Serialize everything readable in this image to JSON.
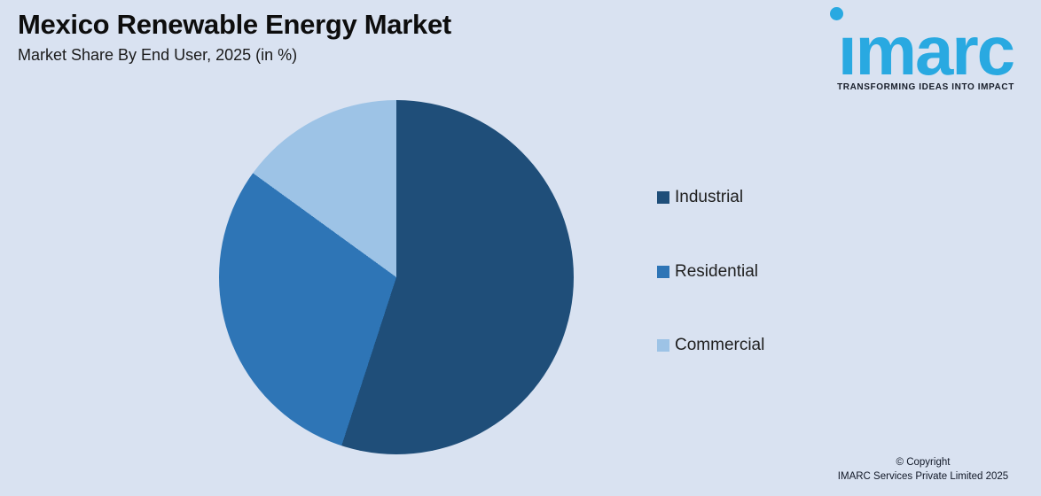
{
  "header": {
    "title": "Mexico Renewable Energy Market",
    "subtitle": "Market Share By End User, 2025 (in %)"
  },
  "logo": {
    "wordmark": "imarc",
    "tagline": "TRANSFORMING IDEAS INTO IMPACT",
    "brand_color": "#29A9E1"
  },
  "chart_data": {
    "type": "pie",
    "title": "Mexico Renewable Energy Market",
    "subtitle": "Market Share By End User, 2025 (in %)",
    "labels": [
      "Industrial",
      "Residential",
      "Commercial"
    ],
    "values": [
      55,
      30,
      15
    ],
    "unit": "%",
    "colors": [
      "#1F4E79",
      "#2E75B6",
      "#9DC3E6"
    ],
    "start_angle_deg": 0,
    "direction": "clockwise",
    "legend_position": "right",
    "data_labels_shown": false
  },
  "footer": {
    "line1": "© Copyright",
    "line2": "IMARC Services Private Limited 2025"
  },
  "colors": {
    "background": "#D9E2F1",
    "text": "#1a1a1a"
  }
}
